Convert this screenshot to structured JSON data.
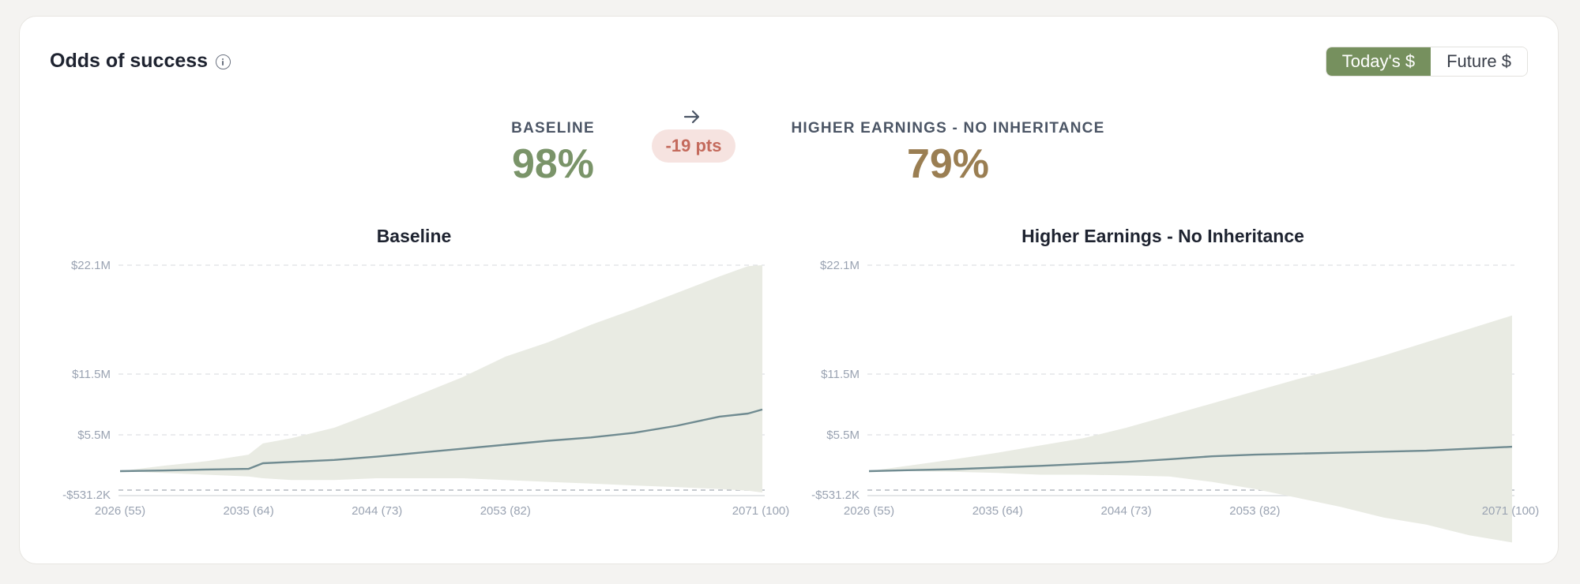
{
  "header": {
    "title": "Odds of success"
  },
  "toggle": {
    "options": [
      "Today's $",
      "Future $"
    ],
    "selected": "Today's $"
  },
  "comparison": {
    "baseline": {
      "label": "BASELINE",
      "value": "98%"
    },
    "change": "-19 pts",
    "scenario": {
      "label": "HIGHER EARNINGS - NO INHERITANCE",
      "value": "79%"
    }
  },
  "colors": {
    "accent": "#76905e",
    "baseline_value": "#7a9469",
    "scenario_value": "#9a7e52",
    "band": "#e9ebe3",
    "median": "#708b91",
    "negative": "#c46a5c"
  },
  "chart_data": [
    {
      "type": "area",
      "title": "Baseline",
      "x_ticks": [
        "2026 (55)",
        "2035 (64)",
        "2044 (73)",
        "2053 (82)",
        "2071 (100)"
      ],
      "x_tick_years": [
        2026,
        2035,
        2044,
        2053,
        2071
      ],
      "y_ticks": [
        "$22.1M",
        "$11.5M",
        "$5.5M",
        "-$531.2K"
      ],
      "x": [
        2026,
        2029,
        2032,
        2035,
        2036,
        2038,
        2041,
        2044,
        2047,
        2050,
        2053,
        2056,
        2059,
        2062,
        2065,
        2068,
        2070,
        2071
      ],
      "median": [
        0,
        0.1,
        0.25,
        0.35,
        1.2,
        1.4,
        1.7,
        2.2,
        2.8,
        3.4,
        4.0,
        4.6,
        5.1,
        5.7,
        6.4,
        7.3,
        7.6,
        8.0
      ],
      "upper": [
        0,
        0.8,
        1.5,
        2.5,
        4.2,
        5.0,
        6.2,
        7.8,
        9.5,
        11.2,
        13.2,
        14.6,
        16.3,
        17.8,
        19.4,
        21.0,
        22.0,
        22.1
      ],
      "lower": [
        0,
        -0.05,
        -0.1,
        -0.15,
        -0.2,
        -0.25,
        -0.25,
        -0.2,
        -0.2,
        -0.2,
        -0.25,
        -0.3,
        -0.35,
        -0.4,
        -0.45,
        -0.5,
        -0.55,
        -0.6
      ],
      "grid": "dashed-horizontal"
    },
    {
      "type": "area",
      "title": "Higher Earnings - No Inheritance",
      "x_ticks": [
        "2026 (55)",
        "2035 (64)",
        "2044 (73)",
        "2053 (82)",
        "2071 (100)"
      ],
      "x_tick_years": [
        2026,
        2035,
        2044,
        2053,
        2071
      ],
      "y_ticks": [
        "$22.1M",
        "$11.5M",
        "$5.5M",
        "-$531.2K"
      ],
      "x": [
        2026,
        2029,
        2032,
        2035,
        2038,
        2041,
        2044,
        2047,
        2050,
        2053,
        2056,
        2059,
        2062,
        2065,
        2068,
        2071
      ],
      "median": [
        0,
        0.15,
        0.3,
        0.55,
        0.8,
        1.1,
        1.4,
        1.8,
        2.25,
        2.5,
        2.65,
        2.8,
        2.95,
        3.1,
        3.4,
        3.7
      ],
      "upper": [
        0,
        0.9,
        1.8,
        2.8,
        3.9,
        5.0,
        6.2,
        7.4,
        8.6,
        9.8,
        11.0,
        12.1,
        13.3,
        14.6,
        15.9,
        17.2
      ],
      "lower": [
        0,
        0,
        -0.02,
        -0.05,
        -0.1,
        -0.1,
        -0.12,
        -0.15,
        -0.3,
        -0.5,
        -0.75,
        -1.0,
        -1.3,
        -1.5,
        -1.8,
        -2.0
      ],
      "grid": "dashed-horizontal"
    }
  ]
}
